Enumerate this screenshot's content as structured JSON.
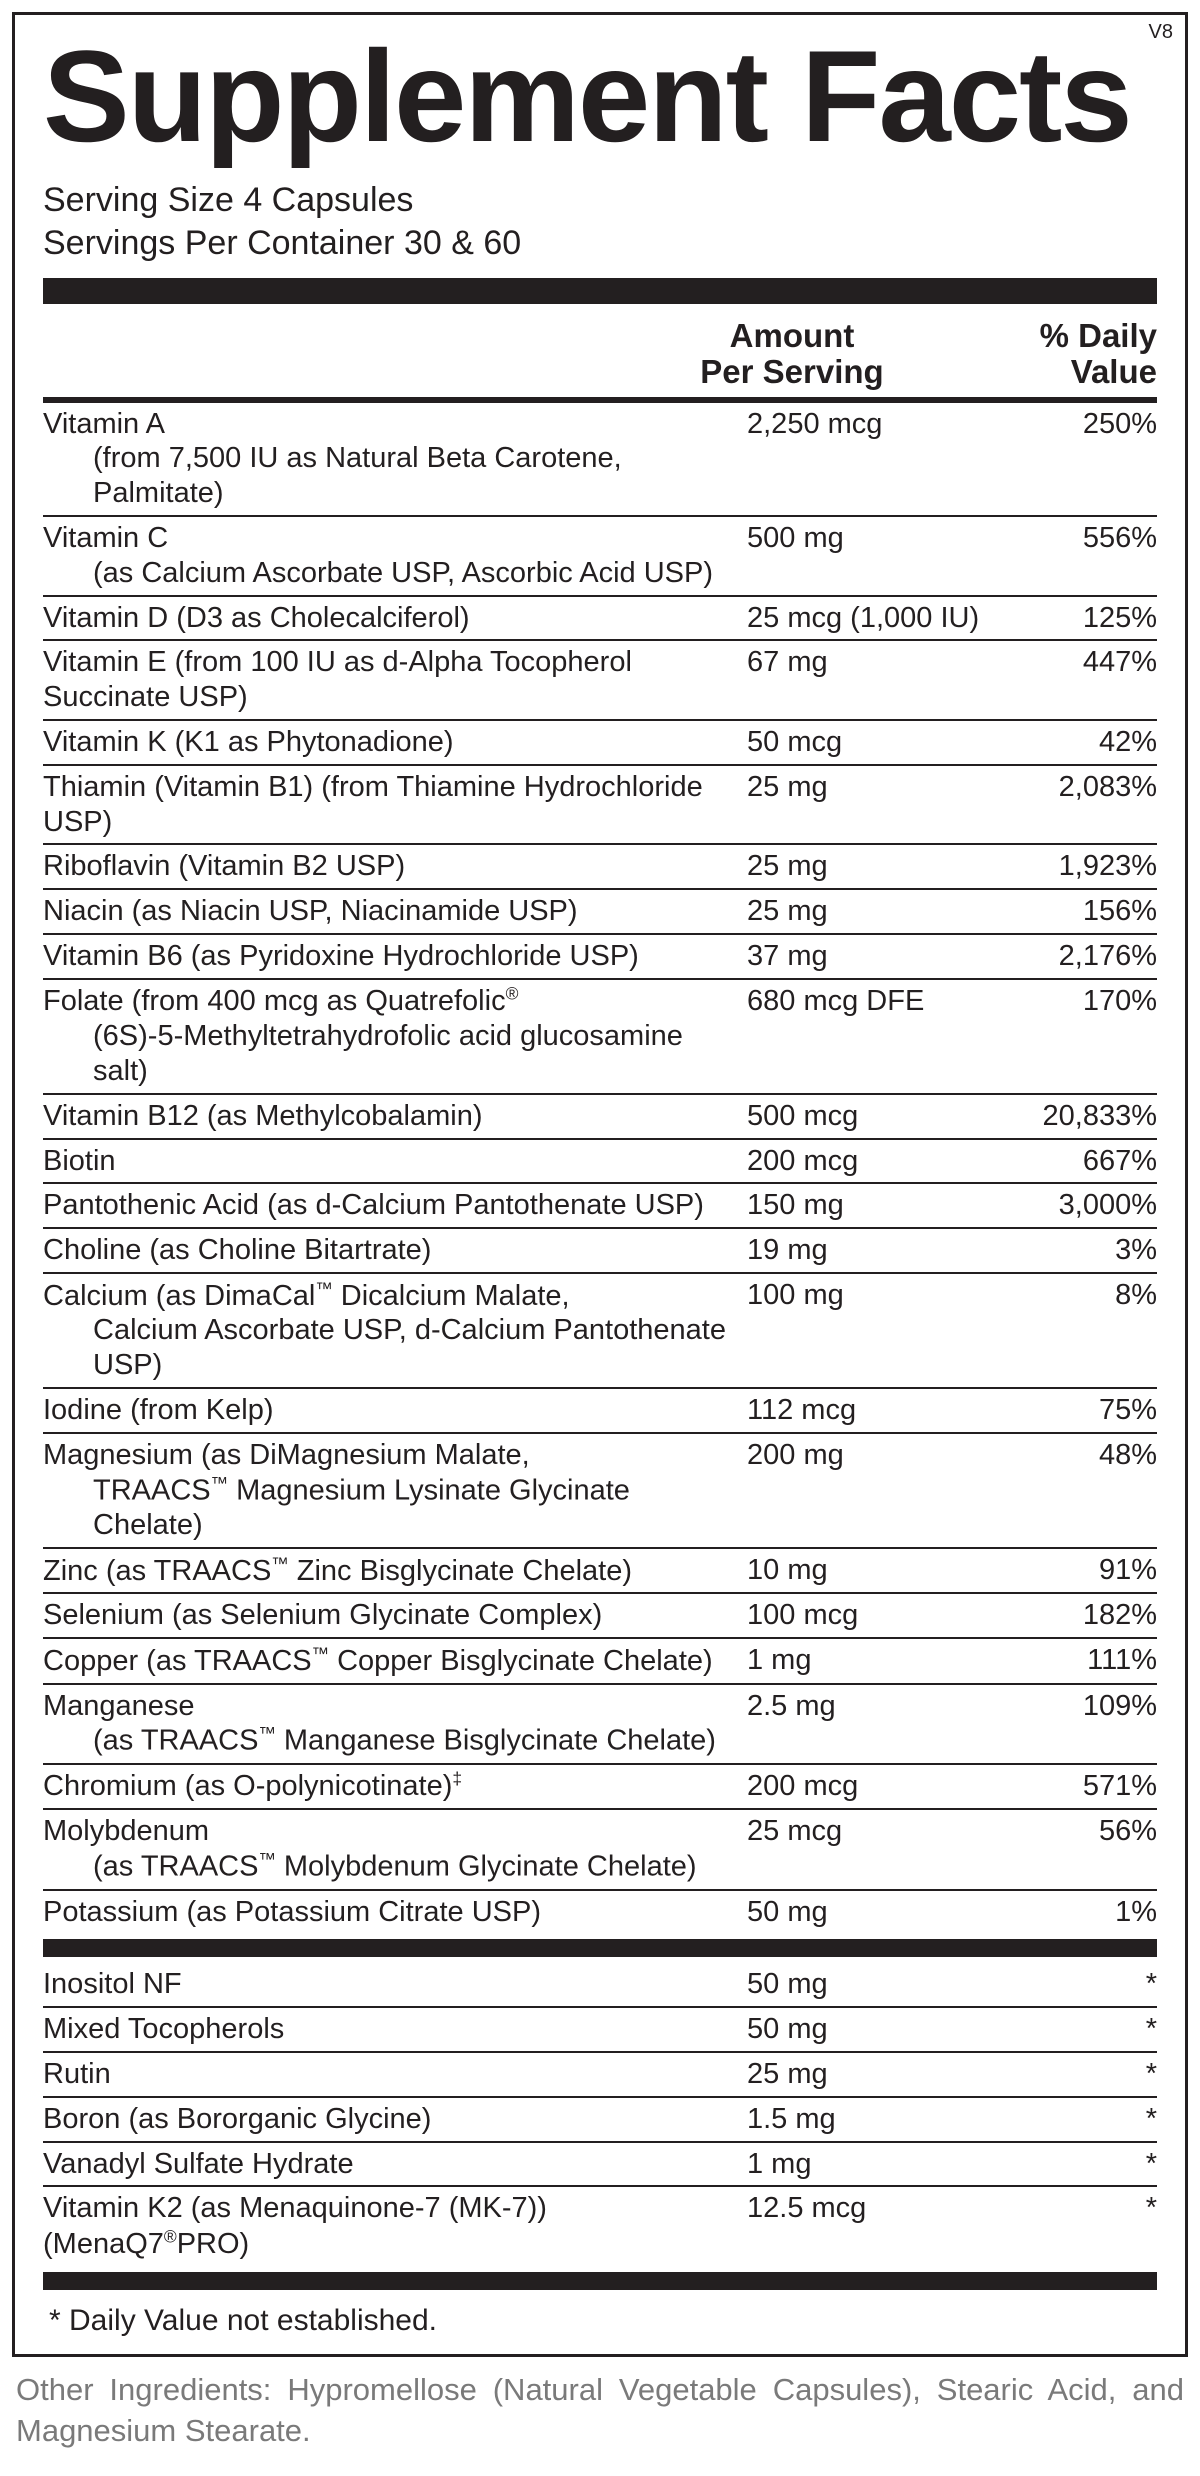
{
  "version": "V8",
  "title": "Supplement Facts",
  "serving_size": "Serving Size 4 Capsules",
  "servings_per_container": "Servings Per Container 30 & 60",
  "header": {
    "amount_line1": "Amount",
    "amount_line2": "Per Serving",
    "dv_line1": "% Daily",
    "dv_line2": "Value"
  },
  "rows_main": [
    {
      "name": "Vitamin A",
      "sub": "(from 7,500 IU as Natural Beta Carotene, Palmitate)",
      "amount": "2,250 mcg",
      "dv": "250%"
    },
    {
      "name": "Vitamin C",
      "sub": "(as Calcium Ascorbate USP, Ascorbic Acid USP)",
      "amount": "500 mg",
      "dv": "556%"
    },
    {
      "name": "Vitamin D (D3 as Cholecalciferol)",
      "amount": "25 mcg (1,000 IU)",
      "dv": "125%"
    },
    {
      "name": "Vitamin E (from 100 IU as d-Alpha Tocopherol Succinate USP)",
      "amount": "67 mg",
      "dv": "447%"
    },
    {
      "name": "Vitamin K (K1 as Phytonadione)",
      "amount": "50 mcg",
      "dv": "42%"
    },
    {
      "name": "Thiamin (Vitamin B1) (from Thiamine Hydrochloride USP)",
      "amount": "25 mg",
      "dv": "2,083%"
    },
    {
      "name": "Riboflavin (Vitamin B2 USP)",
      "amount": "25 mg",
      "dv": "1,923%"
    },
    {
      "name": "Niacin (as Niacin USP, Niacinamide USP)",
      "amount": "25 mg",
      "dv": "156%"
    },
    {
      "name": "Vitamin B6 (as Pyridoxine Hydrochloride USP)",
      "amount": "37 mg",
      "dv": "2,176%"
    },
    {
      "name_html": "Folate (from 400 mcg as Quatrefolic<sup>®</sup>",
      "sub": "(6S)-5-Methyltetrahydrofolic acid glucosamine salt)",
      "amount": "680 mcg DFE",
      "dv": "170%"
    },
    {
      "name": "Vitamin B12 (as Methylcobalamin)",
      "amount": "500 mcg",
      "dv": "20,833%"
    },
    {
      "name": "Biotin",
      "amount": "200 mcg",
      "dv": "667%"
    },
    {
      "name": "Pantothenic Acid (as d-Calcium Pantothenate USP)",
      "amount": "150 mg",
      "dv": "3,000%"
    },
    {
      "name": "Choline (as Choline Bitartrate)",
      "amount": "19 mg",
      "dv": "3%"
    },
    {
      "name_html": "Calcium (as DimaCal<sup>™</sup> Dicalcium Malate,",
      "sub": "Calcium Ascorbate USP, d-Calcium Pantothenate USP)",
      "amount": "100 mg",
      "dv": "8%"
    },
    {
      "name": "Iodine (from Kelp)",
      "amount": "112 mcg",
      "dv": "75%"
    },
    {
      "name": "Magnesium (as DiMagnesium Malate,",
      "sub_html": "TRAACS<sup>™</sup> Magnesium Lysinate Glycinate Chelate)",
      "amount": "200 mg",
      "dv": "48%"
    },
    {
      "name_html": "Zinc (as TRAACS<sup>™</sup> Zinc Bisglycinate Chelate)",
      "amount": "10 mg",
      "dv": "91%"
    },
    {
      "name": "Selenium (as Selenium Glycinate Complex)",
      "amount": "100 mcg",
      "dv": "182%"
    },
    {
      "name_html": "Copper (as TRAACS<sup>™</sup> Copper Bisglycinate Chelate)",
      "amount": "1 mg",
      "dv": "111%"
    },
    {
      "name": "Manganese",
      "sub_html": "(as TRAACS<sup>™</sup> Manganese Bisglycinate Chelate)",
      "amount": "2.5 mg",
      "dv": "109%"
    },
    {
      "name_html": "Chromium (as O-polynicotinate)<sup>‡</sup>",
      "amount": "200 mcg",
      "dv": "571%"
    },
    {
      "name": "Molybdenum",
      "sub_html": "(as TRAACS<sup>™</sup> Molybdenum Glycinate Chelate)",
      "amount": "25 mcg",
      "dv": "56%"
    },
    {
      "name": "Potassium (as Potassium Citrate USP)",
      "amount": "50 mg",
      "dv": "1%"
    }
  ],
  "rows_secondary": [
    {
      "name": "Inositol NF",
      "amount": "50 mg",
      "dv": "*"
    },
    {
      "name": "Mixed Tocopherols",
      "amount": "50 mg",
      "dv": "*"
    },
    {
      "name": "Rutin",
      "amount": "25 mg",
      "dv": "*"
    },
    {
      "name": "Boron (as Bororganic Glycine)",
      "amount": "1.5 mg",
      "dv": "*"
    },
    {
      "name": "Vanadyl Sulfate Hydrate",
      "amount": "1 mg",
      "dv": "*"
    },
    {
      "name_html": "Vitamin K2 (as Menaquinone-7 (MK-7)) (MenaQ7<sup>®</sup>PRO)",
      "amount": "12.5 mcg",
      "dv": "*"
    }
  ],
  "footnote": "* Daily Value not established.",
  "other_ingredients": "Other Ingredients: Hypromellose (Natural Vegetable Capsules), Stearic Acid, and Magnesium Stearate.",
  "colors": {
    "text": "#231f20",
    "rule": "#231f20",
    "background": "#ffffff",
    "other_text": "#7a7a7a"
  }
}
